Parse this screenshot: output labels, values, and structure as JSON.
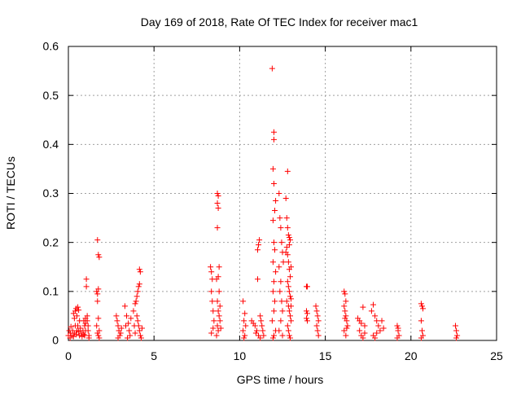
{
  "chart_data": {
    "type": "scatter",
    "title": "Day 169 of 2018, Rate Of TEC Index for receiver mac1",
    "xlabel": "GPS time / hours",
    "ylabel": "ROTI / TECUs",
    "xlim": [
      0,
      25
    ],
    "ylim": [
      0,
      0.6
    ],
    "x_ticks": [
      0,
      5,
      10,
      15,
      20,
      25
    ],
    "y_ticks": [
      0,
      0.1,
      0.2,
      0.3,
      0.4,
      0.5,
      0.6
    ],
    "x_tick_labels": [
      "0",
      "5",
      "10",
      "15",
      "20",
      "25"
    ],
    "y_tick_labels": [
      "0",
      "0.1",
      "0.2",
      "0.3",
      "0.4",
      "0.5",
      "0.6"
    ],
    "grid": true,
    "marker": "plus",
    "marker_color": "#ff0000",
    "series": [
      {
        "name": "ROTI",
        "points": [
          [
            0.0,
            0.01
          ],
          [
            0.05,
            0.02
          ],
          [
            0.1,
            0.005
          ],
          [
            0.12,
            0.015
          ],
          [
            0.15,
            0.028
          ],
          [
            0.2,
            0.01
          ],
          [
            0.25,
            0.02
          ],
          [
            0.3,
            0.008
          ],
          [
            0.35,
            0.015
          ],
          [
            0.4,
            0.03
          ],
          [
            0.45,
            0.012
          ],
          [
            0.5,
            0.02
          ],
          [
            0.3,
            0.055
          ],
          [
            0.35,
            0.045
          ],
          [
            0.4,
            0.06
          ],
          [
            0.45,
            0.065
          ],
          [
            0.5,
            0.05
          ],
          [
            0.55,
            0.068
          ],
          [
            0.6,
            0.062
          ],
          [
            0.65,
            0.04
          ],
          [
            0.55,
            0.03
          ],
          [
            0.6,
            0.018
          ],
          [
            0.65,
            0.01
          ],
          [
            0.7,
            0.025
          ],
          [
            0.75,
            0.015
          ],
          [
            0.8,
            0.008
          ],
          [
            0.85,
            0.02
          ],
          [
            0.9,
            0.012
          ],
          [
            0.95,
            0.03
          ],
          [
            1.0,
            0.035
          ],
          [
            1.0,
            0.045
          ],
          [
            1.05,
            0.125
          ],
          [
            1.05,
            0.11
          ],
          [
            1.1,
            0.05
          ],
          [
            1.1,
            0.04
          ],
          [
            1.15,
            0.03
          ],
          [
            1.15,
            0.02
          ],
          [
            1.2,
            0.01
          ],
          [
            1.2,
            0.005
          ],
          [
            1.0,
            0.02
          ],
          [
            0.9,
            0.04
          ],
          [
            0.95,
            0.01
          ],
          [
            1.7,
            0.205
          ],
          [
            1.75,
            0.175
          ],
          [
            1.8,
            0.17
          ],
          [
            1.65,
            0.1
          ],
          [
            1.7,
            0.095
          ],
          [
            1.75,
            0.105
          ],
          [
            1.7,
            0.08
          ],
          [
            1.75,
            0.045
          ],
          [
            1.65,
            0.03
          ],
          [
            1.7,
            0.015
          ],
          [
            1.75,
            0.01
          ],
          [
            1.8,
            0.02
          ],
          [
            1.8,
            0.005
          ],
          [
            2.8,
            0.05
          ],
          [
            2.85,
            0.04
          ],
          [
            2.9,
            0.03
          ],
          [
            2.95,
            0.02
          ],
          [
            3.0,
            0.01
          ],
          [
            3.05,
            0.015
          ],
          [
            2.9,
            0.005
          ],
          [
            3.1,
            0.025
          ],
          [
            3.3,
            0.07
          ],
          [
            3.4,
            0.05
          ],
          [
            3.5,
            0.035
          ],
          [
            3.55,
            0.02
          ],
          [
            3.6,
            0.01
          ],
          [
            3.45,
            0.005
          ],
          [
            3.35,
            0.03
          ],
          [
            3.65,
            0.045
          ],
          [
            3.8,
            0.06
          ],
          [
            3.9,
            0.075
          ],
          [
            3.95,
            0.08
          ],
          [
            4.0,
            0.09
          ],
          [
            4.05,
            0.1
          ],
          [
            4.1,
            0.11
          ],
          [
            4.15,
            0.115
          ],
          [
            4.2,
            0.14
          ],
          [
            4.15,
            0.145
          ],
          [
            4.0,
            0.05
          ],
          [
            4.05,
            0.04
          ],
          [
            4.1,
            0.03
          ],
          [
            4.15,
            0.02
          ],
          [
            4.2,
            0.01
          ],
          [
            4.25,
            0.005
          ],
          [
            3.85,
            0.03
          ],
          [
            3.9,
            0.015
          ],
          [
            4.3,
            0.025
          ],
          [
            8.3,
            0.15
          ],
          [
            8.35,
            0.14
          ],
          [
            8.4,
            0.125
          ],
          [
            8.35,
            0.1
          ],
          [
            8.4,
            0.08
          ],
          [
            8.45,
            0.06
          ],
          [
            8.5,
            0.04
          ],
          [
            8.45,
            0.025
          ],
          [
            8.35,
            0.015
          ],
          [
            8.7,
            0.3
          ],
          [
            8.75,
            0.295
          ],
          [
            8.7,
            0.28
          ],
          [
            8.75,
            0.27
          ],
          [
            8.7,
            0.23
          ],
          [
            8.8,
            0.15
          ],
          [
            8.75,
            0.13
          ],
          [
            8.65,
            0.125
          ],
          [
            8.8,
            0.1
          ],
          [
            8.7,
            0.08
          ],
          [
            8.85,
            0.07
          ],
          [
            8.75,
            0.06
          ],
          [
            8.8,
            0.05
          ],
          [
            8.85,
            0.04
          ],
          [
            8.7,
            0.03
          ],
          [
            8.9,
            0.025
          ],
          [
            8.75,
            0.02
          ],
          [
            8.65,
            0.01
          ],
          [
            10.2,
            0.08
          ],
          [
            10.3,
            0.055
          ],
          [
            10.25,
            0.04
          ],
          [
            10.35,
            0.03
          ],
          [
            10.2,
            0.02
          ],
          [
            10.3,
            0.01
          ],
          [
            10.25,
            0.005
          ],
          [
            10.7,
            0.04
          ],
          [
            10.8,
            0.035
          ],
          [
            10.9,
            0.03
          ],
          [
            11.0,
            0.02
          ],
          [
            11.05,
            0.185
          ],
          [
            11.1,
            0.195
          ],
          [
            11.15,
            0.205
          ],
          [
            11.05,
            0.125
          ],
          [
            11.2,
            0.05
          ],
          [
            11.25,
            0.04
          ],
          [
            11.3,
            0.03
          ],
          [
            11.35,
            0.02
          ],
          [
            11.1,
            0.01
          ],
          [
            11.2,
            0.005
          ],
          [
            10.95,
            0.015
          ],
          [
            11.4,
            0.01
          ],
          [
            11.9,
            0.555
          ],
          [
            12.0,
            0.425
          ],
          [
            12.0,
            0.41
          ],
          [
            11.95,
            0.35
          ],
          [
            12.0,
            0.32
          ],
          [
            12.1,
            0.285
          ],
          [
            12.05,
            0.265
          ],
          [
            11.95,
            0.245
          ],
          [
            12.0,
            0.2
          ],
          [
            12.05,
            0.185
          ],
          [
            11.95,
            0.16
          ],
          [
            12.1,
            0.14
          ],
          [
            12.0,
            0.12
          ],
          [
            11.95,
            0.1
          ],
          [
            12.05,
            0.08
          ],
          [
            12.0,
            0.06
          ],
          [
            11.9,
            0.04
          ],
          [
            12.1,
            0.02
          ],
          [
            12.0,
            0.01
          ],
          [
            11.95,
            0.005
          ],
          [
            12.3,
            0.3
          ],
          [
            12.35,
            0.25
          ],
          [
            12.4,
            0.23
          ],
          [
            12.45,
            0.2
          ],
          [
            12.5,
            0.18
          ],
          [
            12.55,
            0.16
          ],
          [
            12.3,
            0.15
          ],
          [
            12.4,
            0.12
          ],
          [
            12.35,
            0.1
          ],
          [
            12.45,
            0.08
          ],
          [
            12.5,
            0.06
          ],
          [
            12.4,
            0.04
          ],
          [
            12.3,
            0.02
          ],
          [
            12.5,
            0.01
          ],
          [
            12.8,
            0.345
          ],
          [
            12.7,
            0.29
          ],
          [
            12.75,
            0.25
          ],
          [
            12.8,
            0.23
          ],
          [
            12.85,
            0.215
          ],
          [
            12.9,
            0.21
          ],
          [
            12.95,
            0.205
          ],
          [
            12.75,
            0.19
          ],
          [
            12.8,
            0.175
          ],
          [
            12.85,
            0.16
          ],
          [
            12.9,
            0.145
          ],
          [
            12.95,
            0.13
          ],
          [
            12.8,
            0.12
          ],
          [
            12.85,
            0.11
          ],
          [
            12.9,
            0.1
          ],
          [
            12.95,
            0.09
          ],
          [
            13.0,
            0.085
          ],
          [
            12.75,
            0.08
          ],
          [
            12.85,
            0.07
          ],
          [
            12.9,
            0.06
          ],
          [
            12.95,
            0.05
          ],
          [
            13.0,
            0.04
          ],
          [
            12.8,
            0.03
          ],
          [
            12.85,
            0.02
          ],
          [
            12.9,
            0.01
          ],
          [
            12.95,
            0.005
          ],
          [
            13.0,
            0.07
          ],
          [
            13.0,
            0.15
          ],
          [
            12.7,
            0.18
          ],
          [
            12.9,
            0.195
          ],
          [
            13.9,
            0.11
          ],
          [
            13.95,
            0.11
          ],
          [
            13.9,
            0.06
          ],
          [
            13.95,
            0.055
          ],
          [
            13.9,
            0.045
          ],
          [
            13.95,
            0.04
          ],
          [
            14.5,
            0.06
          ],
          [
            14.55,
            0.05
          ],
          [
            14.6,
            0.04
          ],
          [
            14.5,
            0.03
          ],
          [
            14.55,
            0.02
          ],
          [
            14.6,
            0.01
          ],
          [
            14.45,
            0.07
          ],
          [
            16.1,
            0.1
          ],
          [
            16.15,
            0.095
          ],
          [
            16.2,
            0.08
          ],
          [
            16.1,
            0.07
          ],
          [
            16.15,
            0.06
          ],
          [
            16.2,
            0.05
          ],
          [
            16.25,
            0.04
          ],
          [
            16.3,
            0.03
          ],
          [
            16.1,
            0.02
          ],
          [
            16.2,
            0.01
          ],
          [
            16.15,
            0.045
          ],
          [
            16.25,
            0.025
          ],
          [
            16.9,
            0.045
          ],
          [
            17.0,
            0.04
          ],
          [
            17.1,
            0.035
          ],
          [
            17.2,
            0.068
          ],
          [
            17.3,
            0.03
          ],
          [
            17.0,
            0.02
          ],
          [
            17.1,
            0.01
          ],
          [
            17.2,
            0.005
          ],
          [
            17.3,
            0.015
          ],
          [
            17.7,
            0.06
          ],
          [
            17.8,
            0.073
          ],
          [
            17.9,
            0.05
          ],
          [
            18.0,
            0.04
          ],
          [
            18.1,
            0.03
          ],
          [
            18.2,
            0.02
          ],
          [
            17.8,
            0.01
          ],
          [
            17.9,
            0.005
          ],
          [
            18.3,
            0.04
          ],
          [
            18.4,
            0.025
          ],
          [
            18.0,
            0.015
          ],
          [
            19.2,
            0.03
          ],
          [
            19.25,
            0.02
          ],
          [
            19.3,
            0.01
          ],
          [
            19.2,
            0.005
          ],
          [
            19.25,
            0.025
          ],
          [
            20.6,
            0.075
          ],
          [
            20.65,
            0.07
          ],
          [
            20.7,
            0.065
          ],
          [
            20.6,
            0.04
          ],
          [
            20.65,
            0.02
          ],
          [
            20.7,
            0.01
          ],
          [
            20.6,
            0.005
          ],
          [
            22.6,
            0.03
          ],
          [
            22.65,
            0.02
          ],
          [
            22.7,
            0.01
          ],
          [
            22.65,
            0.005
          ]
        ]
      }
    ]
  }
}
